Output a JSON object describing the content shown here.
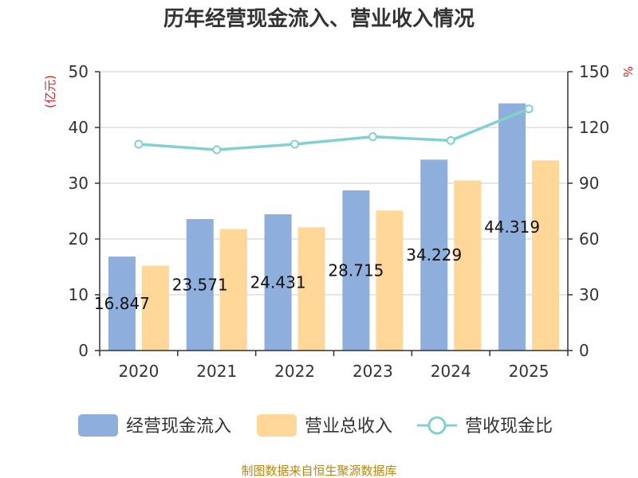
{
  "chart_data": {
    "type": "bar",
    "title": "历年经营现金流入、营业收入情况",
    "categories": [
      "2020",
      "2021",
      "2022",
      "2023",
      "2024",
      "2025"
    ],
    "series": [
      {
        "name": "经营现金流入",
        "type": "bar",
        "axis": "left",
        "color": "#8eaedb",
        "values": [
          16.847,
          23.571,
          24.431,
          28.715,
          34.229,
          44.319
        ],
        "labels": [
          "16.847",
          "23.571",
          "24.431",
          "28.715",
          "34.229",
          "44.319"
        ]
      },
      {
        "name": "营业总收入",
        "type": "bar",
        "axis": "left",
        "color": "#ffd899",
        "values": [
          15.2,
          21.8,
          22.1,
          25.1,
          30.5,
          34.1
        ]
      },
      {
        "name": "营收现金比",
        "type": "line",
        "axis": "right",
        "color": "#82d0d2",
        "values": [
          111,
          108,
          111,
          115,
          113,
          130
        ]
      }
    ],
    "y_left": {
      "label": "(亿元)",
      "ylim": [
        0,
        50
      ],
      "ticks": [
        "0",
        "10",
        "20",
        "30",
        "40",
        "50"
      ]
    },
    "y_right": {
      "label": "%",
      "ylim": [
        0,
        150
      ],
      "ticks": [
        "0",
        "30",
        "60",
        "90",
        "120",
        "150"
      ]
    },
    "grid": true,
    "legend": "bottom"
  },
  "source": "制图数据来自恒生聚源数据库"
}
